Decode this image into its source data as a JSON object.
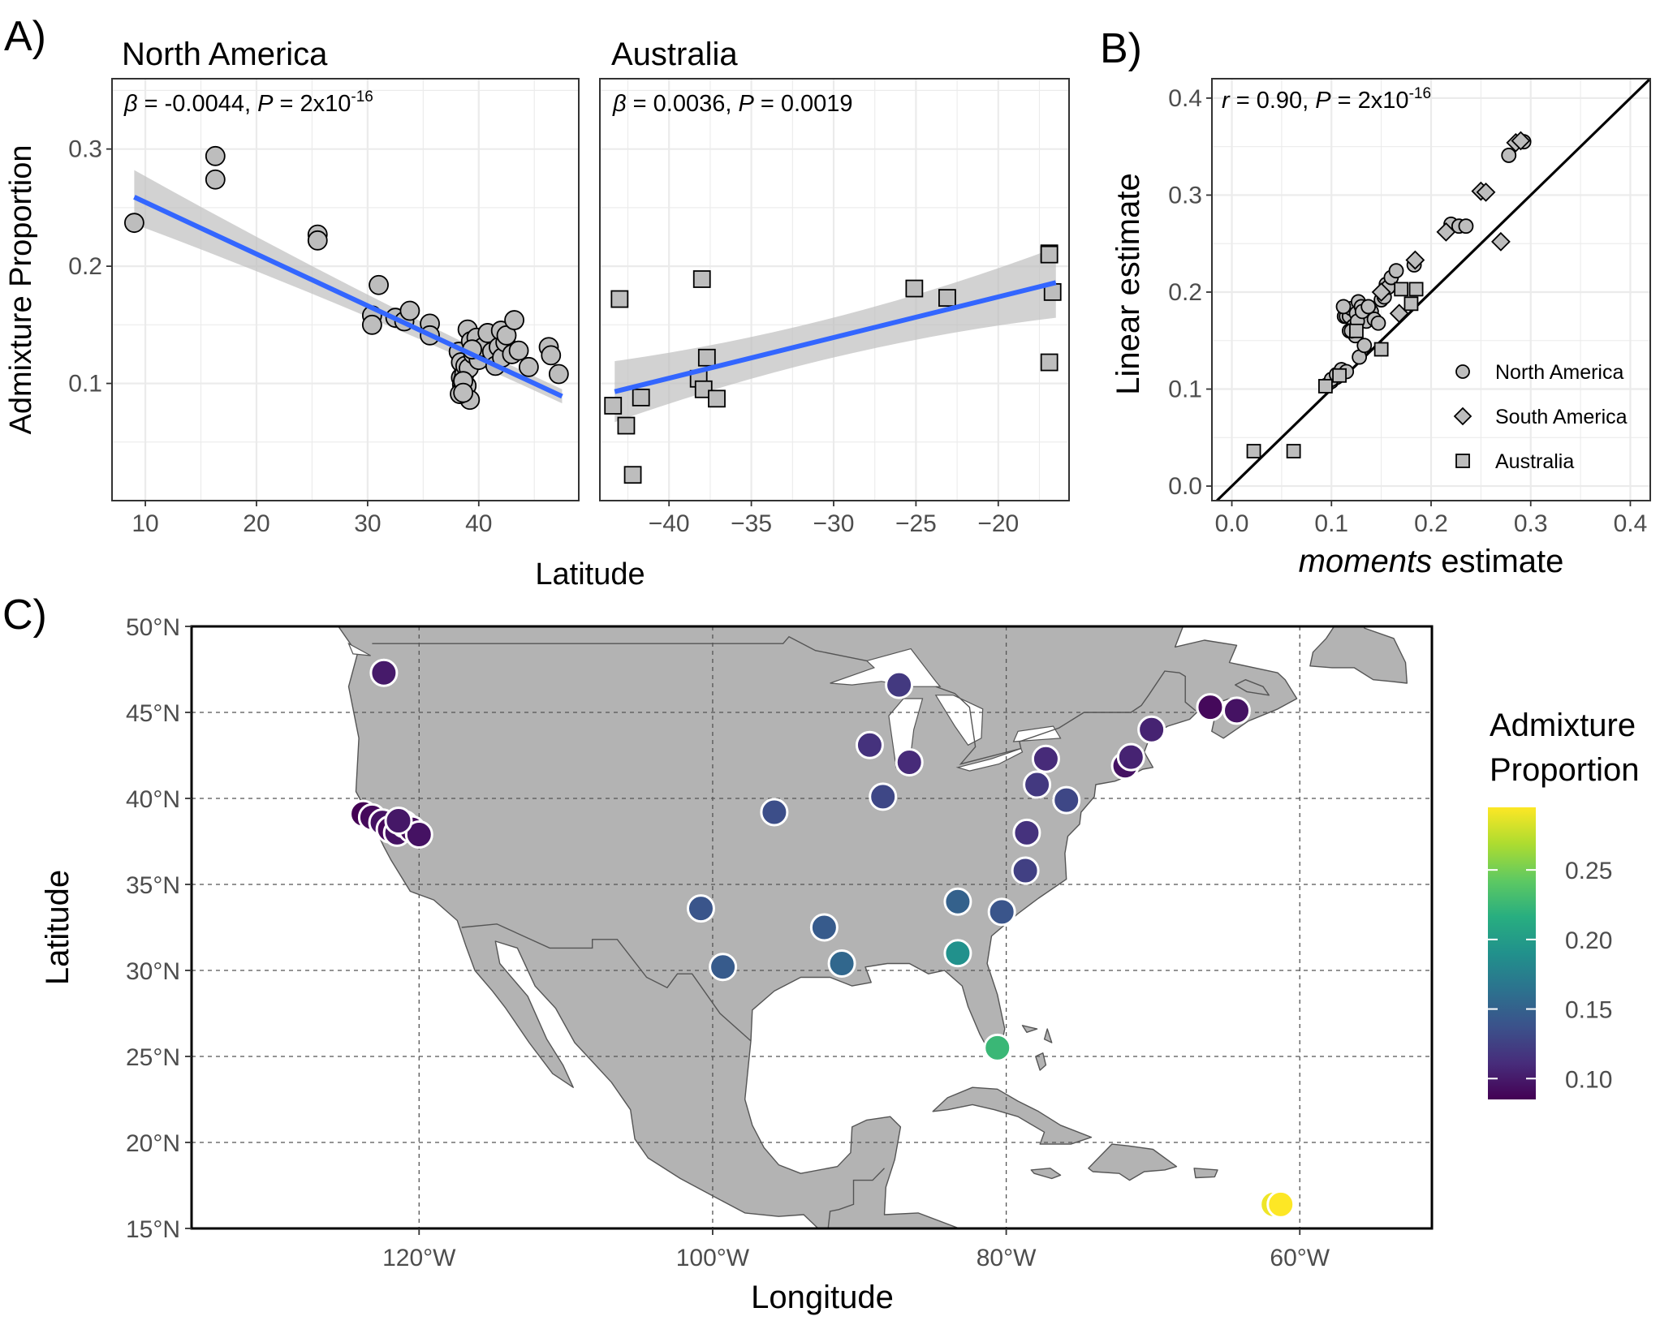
{
  "panel_labels": {
    "a": "A)",
    "b": "B)",
    "c": "C)"
  },
  "colors": {
    "grid": "#ebebeb",
    "point_fill": "#bdbdbd",
    "fit_line": "#3366ff",
    "ribbon": "#bfbfbf",
    "land": "#b3b3b3",
    "border": "#555555"
  },
  "chart_data": [
    {
      "type": "scatter",
      "panel": "A",
      "title": "North America",
      "annotation": {
        "beta_sym": "β",
        "beta_text": " = -0.0044, ",
        "p_sym": "P",
        "p_text": " = 2x10",
        "p_exp": "-16"
      },
      "xlabel": "Latitude",
      "ylabel": "Admixture Proportion",
      "xlim": [
        7,
        49
      ],
      "ylim": [
        0.0,
        0.36
      ],
      "xticks": [
        10,
        20,
        30,
        40
      ],
      "yticks": [
        0.1,
        0.2,
        0.3
      ],
      "marker": "circle",
      "fit": {
        "x": [
          9,
          47.5
        ],
        "y": [
          0.259,
          0.089
        ],
        "ci_half_width": [
          0.023,
          0.006
        ]
      },
      "x": [
        9.0,
        16.3,
        16.3,
        25.5,
        25.5,
        30.4,
        30.4,
        31.0,
        32.5,
        33.3,
        33.8,
        35.6,
        35.6,
        38.2,
        38.4,
        38.4,
        38.5,
        38.5,
        38.6,
        38.7,
        38.8,
        38.9,
        39.0,
        39.1,
        39.2,
        39.3,
        38.3,
        38.6,
        39.5,
        39.8,
        40.0,
        40.4,
        40.8,
        41.2,
        41.5,
        41.8,
        42.0,
        42.1,
        42.4,
        42.5,
        43.0,
        43.2,
        43.6,
        44.5,
        46.3,
        46.5,
        47.2,
        38.6,
        39.4
      ],
      "y": [
        0.237,
        0.294,
        0.274,
        0.227,
        0.222,
        0.158,
        0.15,
        0.184,
        0.156,
        0.153,
        0.162,
        0.151,
        0.141,
        0.127,
        0.118,
        0.105,
        0.099,
        0.094,
        0.103,
        0.108,
        0.115,
        0.098,
        0.146,
        0.113,
        0.086,
        0.136,
        0.091,
        0.102,
        0.125,
        0.139,
        0.12,
        0.131,
        0.143,
        0.127,
        0.115,
        0.131,
        0.145,
        0.122,
        0.135,
        0.141,
        0.125,
        0.154,
        0.128,
        0.114,
        0.131,
        0.124,
        0.108,
        0.092,
        0.129
      ]
    },
    {
      "type": "scatter",
      "panel": "A",
      "title": "Australia",
      "annotation": {
        "beta_sym": "β",
        "beta_text": " = 0.0036, ",
        "p_sym": "P",
        "p_text": " = 0.0019"
      },
      "xlim": [
        -44.2,
        -15.7
      ],
      "ylim": [
        0.0,
        0.36
      ],
      "xticks": [
        -40,
        -35,
        -30,
        -25,
        -20
      ],
      "xticklabels": [
        "−40",
        "−35",
        "−30",
        "−25",
        "−20"
      ],
      "marker": "square",
      "fit": {
        "x": [
          -43.3,
          -16.5
        ],
        "y": [
          0.093,
          0.186
        ],
        "ci_half_width": [
          0.026,
          0.03
        ]
      },
      "x": [
        -43.4,
        -43.0,
        -42.6,
        -42.2,
        -41.7,
        -38.2,
        -38.0,
        -37.9,
        -37.7,
        -37.1,
        -25.1,
        -23.1,
        -16.9,
        -16.9,
        -16.7,
        -16.9
      ],
      "y": [
        0.081,
        0.172,
        0.064,
        0.022,
        0.088,
        0.104,
        0.189,
        0.095,
        0.122,
        0.087,
        0.181,
        0.173,
        0.211,
        0.21,
        0.178,
        0.118
      ]
    },
    {
      "type": "scatter",
      "panel": "B",
      "annotation": {
        "r_sym": "r",
        "r_text": " = 0.90, ",
        "p_sym": "P",
        "p_text": " = 2x10",
        "p_exp": "-16"
      },
      "xlabel_italic": "moments",
      "xlabel_rest": " estimate",
      "ylabel": "Linear estimate",
      "xlim": [
        -0.02,
        0.42
      ],
      "ylim": [
        -0.015,
        0.42
      ],
      "xticks": [
        0.0,
        0.1,
        0.2,
        0.3,
        0.4
      ],
      "yticks": [
        0.0,
        0.1,
        0.2,
        0.3,
        0.4
      ],
      "xticklabels": [
        "0.0",
        "0.1",
        "0.2",
        "0.3",
        "0.4"
      ],
      "yticklabels": [
        "0.0",
        "0.1",
        "0.2",
        "0.3",
        "0.4"
      ],
      "reference_line": "y = x",
      "legend": {
        "placement": "bottom-right",
        "entries": [
          "North America",
          "South America",
          "Australia"
        ]
      },
      "series": [
        {
          "name": "North America",
          "marker": "circle",
          "x": [
            0.095,
            0.1,
            0.105,
            0.108,
            0.11,
            0.113,
            0.115,
            0.118,
            0.12,
            0.122,
            0.125,
            0.127,
            0.13,
            0.132,
            0.135,
            0.14,
            0.143,
            0.147,
            0.15,
            0.153,
            0.155,
            0.157,
            0.16,
            0.165,
            0.183,
            0.22,
            0.228,
            0.235,
            0.278,
            0.293,
            0.1,
            0.105,
            0.112,
            0.118,
            0.124,
            0.128,
            0.133,
            0.11,
            0.115,
            0.12,
            0.126,
            0.131,
            0.137
          ],
          "y": [
            0.104,
            0.108,
            0.112,
            0.116,
            0.12,
            0.175,
            0.175,
            0.175,
            0.183,
            0.165,
            0.178,
            0.19,
            0.185,
            0.175,
            0.17,
            0.18,
            0.172,
            0.168,
            0.192,
            0.195,
            0.208,
            0.205,
            0.215,
            0.222,
            0.228,
            0.27,
            0.268,
            0.268,
            0.341,
            0.355,
            0.11,
            0.115,
            0.185,
            0.16,
            0.155,
            0.133,
            0.145,
            0.12,
            0.118,
            0.16,
            0.17,
            0.18,
            0.185
          ]
        },
        {
          "name": "South America",
          "marker": "diamond",
          "x": [
            0.184,
            0.215,
            0.25,
            0.255,
            0.27,
            0.285,
            0.29,
            0.168,
            0.15
          ],
          "y": [
            0.233,
            0.262,
            0.304,
            0.303,
            0.252,
            0.354,
            0.356,
            0.178,
            0.2
          ]
        },
        {
          "name": "Australia",
          "marker": "square",
          "x": [
            0.022,
            0.062,
            0.094,
            0.108,
            0.125,
            0.15,
            0.17,
            0.18,
            0.185
          ],
          "y": [
            0.036,
            0.036,
            0.103,
            0.114,
            0.16,
            0.141,
            0.203,
            0.188,
            0.203
          ]
        }
      ]
    },
    {
      "type": "scatter",
      "panel": "C",
      "subtype": "map",
      "xlabel": "Longitude",
      "ylabel": "Latitude",
      "xlim": [
        -135.5,
        -51
      ],
      "ylim": [
        15,
        50
      ],
      "xticks": [
        -120,
        -100,
        -80,
        -60
      ],
      "xticklabels": [
        "120°W",
        "100°W",
        "80°W",
        "60°W"
      ],
      "yticks": [
        15,
        20,
        25,
        30,
        35,
        40,
        45,
        50
      ],
      "yticklabels": [
        "15°N",
        "20°N",
        "25°N",
        "30°N",
        "35°N",
        "40°N",
        "45°N",
        "50°N"
      ],
      "legend_title": [
        "Admixture",
        "Proportion"
      ],
      "colorbar": {
        "range": [
          0.085,
          0.295
        ],
        "ticks": [
          0.1,
          0.15,
          0.2,
          0.25
        ],
        "ticklabels": [
          "0.10",
          "0.15",
          "0.20",
          "0.25"
        ]
      },
      "points": {
        "lon": [
          -122.4,
          -123.8,
          -123.2,
          -122.5,
          -122.0,
          -121.5,
          -121.0,
          -120.5,
          -120.0,
          -121.4,
          -87.3,
          -89.3,
          -86.6,
          -88.4,
          -95.8,
          -77.3,
          -77.9,
          -75.9,
          -71.9,
          -71.5,
          -70.1,
          -66.1,
          -64.3,
          -78.6,
          -78.7,
          -80.3,
          -83.3,
          -83.3,
          -100.8,
          -99.3,
          -92.4,
          -91.2,
          -80.6,
          -61.8,
          -61.3
        ],
        "lat": [
          47.3,
          39.1,
          38.9,
          38.6,
          38.2,
          38.0,
          38.5,
          38.2,
          37.9,
          38.7,
          46.6,
          43.1,
          42.1,
          40.1,
          39.2,
          42.3,
          40.8,
          39.9,
          41.9,
          42.4,
          44.0,
          45.3,
          45.1,
          38.0,
          35.8,
          33.4,
          34.0,
          31.0,
          33.6,
          30.2,
          32.5,
          30.4,
          25.5,
          16.4,
          16.4
        ],
        "value": [
          0.1,
          0.085,
          0.09,
          0.095,
          0.09,
          0.095,
          0.1,
          0.09,
          0.095,
          0.098,
          0.12,
          0.115,
          0.11,
          0.13,
          0.135,
          0.11,
          0.12,
          0.13,
          0.095,
          0.105,
          0.105,
          0.09,
          0.095,
          0.115,
          0.125,
          0.14,
          0.15,
          0.19,
          0.14,
          0.145,
          0.145,
          0.155,
          0.225,
          0.29,
          0.295
        ]
      }
    }
  ]
}
